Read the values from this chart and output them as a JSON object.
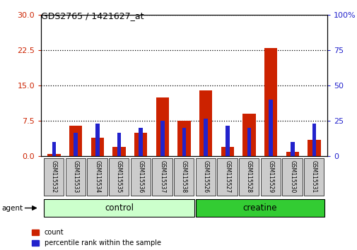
{
  "title": "GDS2765 / 1421627_at",
  "samples": [
    "GSM115532",
    "GSM115533",
    "GSM115534",
    "GSM115535",
    "GSM115536",
    "GSM115537",
    "GSM115538",
    "GSM115526",
    "GSM115527",
    "GSM115528",
    "GSM115529",
    "GSM115530",
    "GSM115531"
  ],
  "count": [
    0.5,
    6.5,
    4.0,
    2.0,
    5.0,
    12.5,
    7.5,
    14.0,
    2.0,
    9.0,
    23.0,
    1.0,
    3.5
  ],
  "percentile_left_scaled": [
    3.0,
    5.0,
    7.0,
    5.0,
    6.0,
    7.5,
    6.0,
    8.0,
    6.5,
    6.0,
    12.0,
    3.0,
    7.0
  ],
  "count_color": "#cc2200",
  "percentile_color": "#2222cc",
  "ylim_left": [
    0,
    30
  ],
  "ylim_right": [
    0,
    100
  ],
  "yticks_left": [
    0,
    7.5,
    15,
    22.5,
    30
  ],
  "yticks_right": [
    0,
    25,
    50,
    75,
    100
  ],
  "n_control": 7,
  "n_creatine": 6,
  "control_color": "#ccffcc",
  "creatine_color": "#33cc33",
  "agent_label": "agent",
  "control_label": "control",
  "creatine_label": "creatine",
  "legend_count": "count",
  "legend_percentile": "percentile rank within the sample",
  "red_bar_width": 0.6,
  "blue_bar_width": 0.18,
  "tick_label_bg": "#cccccc",
  "grid_linestyle": "dotted",
  "grid_linewidth": 0.9
}
